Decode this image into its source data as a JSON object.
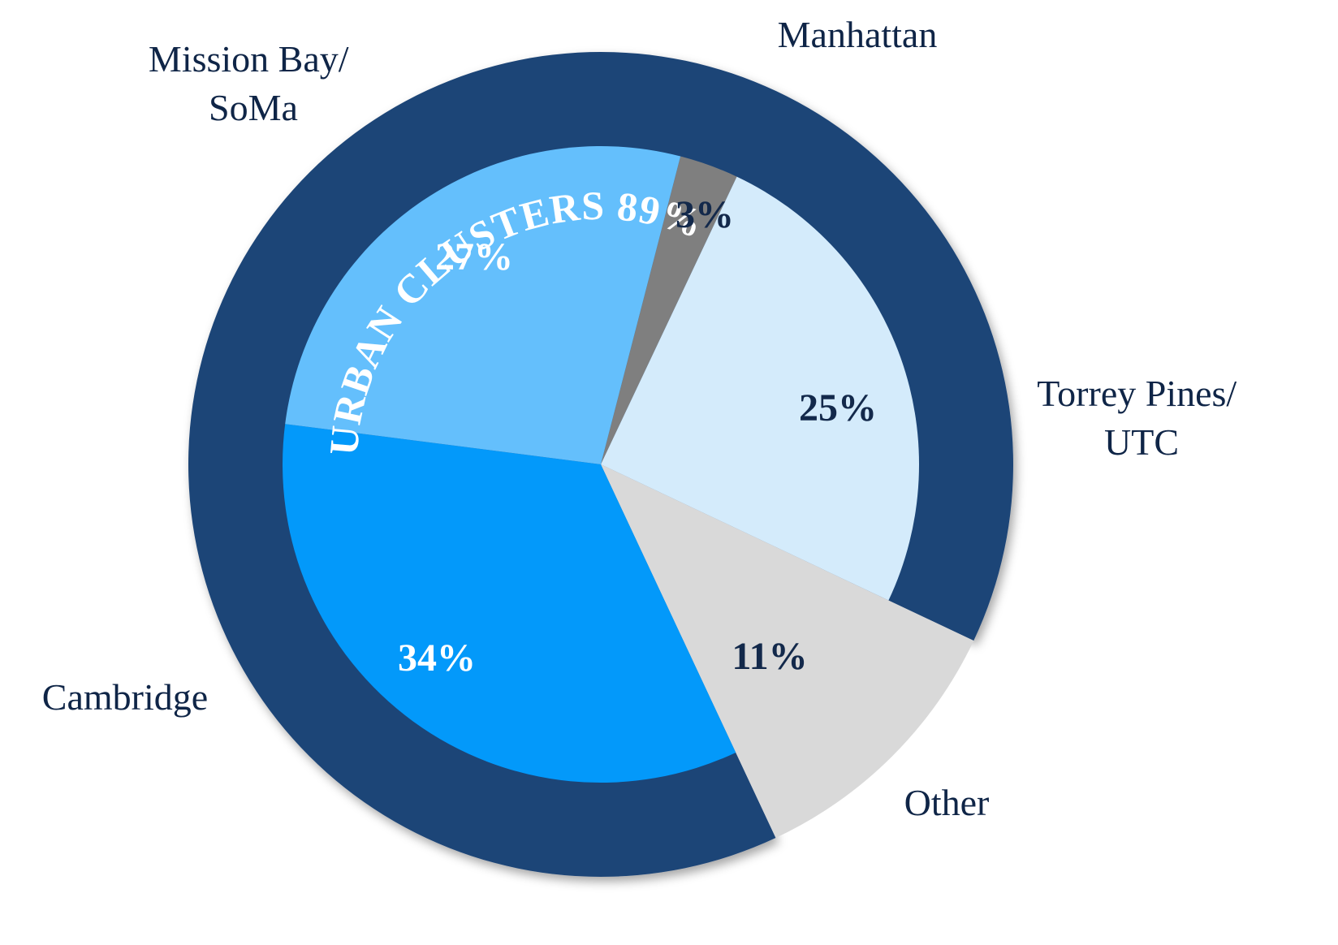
{
  "chart_data": {
    "type": "pie",
    "ring": {
      "label": "URBAN CLUSTERS 89%",
      "value": 89,
      "color": "#1f4577"
    },
    "slices": [
      {
        "label": "Manhattan",
        "value": 3,
        "value_label": "3%",
        "color": "#7f7f7f",
        "text_color": "#13294b"
      },
      {
        "label": "Torrey Pines/ UTC",
        "value": 25,
        "value_label": "25%",
        "color": "#d4ebfb",
        "text_color": "#13294b"
      },
      {
        "label": "Other",
        "value": 11,
        "value_label": "11%",
        "color": "#d9d9d9",
        "text_color": "#13294b"
      },
      {
        "label": "Cambridge",
        "value": 34,
        "value_label": "34%",
        "color": "#0399fa",
        "text_color": "#ffffff"
      },
      {
        "label": "Mission Bay/ SoMa",
        "value": 27,
        "value_label": "27%",
        "color": "#64bffc",
        "text_color": "#ffffff"
      }
    ],
    "labels": {
      "manhattan": [
        "Manhattan"
      ],
      "torrey": [
        "Torrey Pines/",
        "UTC"
      ],
      "other": [
        "Other"
      ],
      "cambridge": [
        "Cambridge"
      ],
      "mission": [
        "Mission Bay/",
        "SoMa"
      ]
    }
  }
}
